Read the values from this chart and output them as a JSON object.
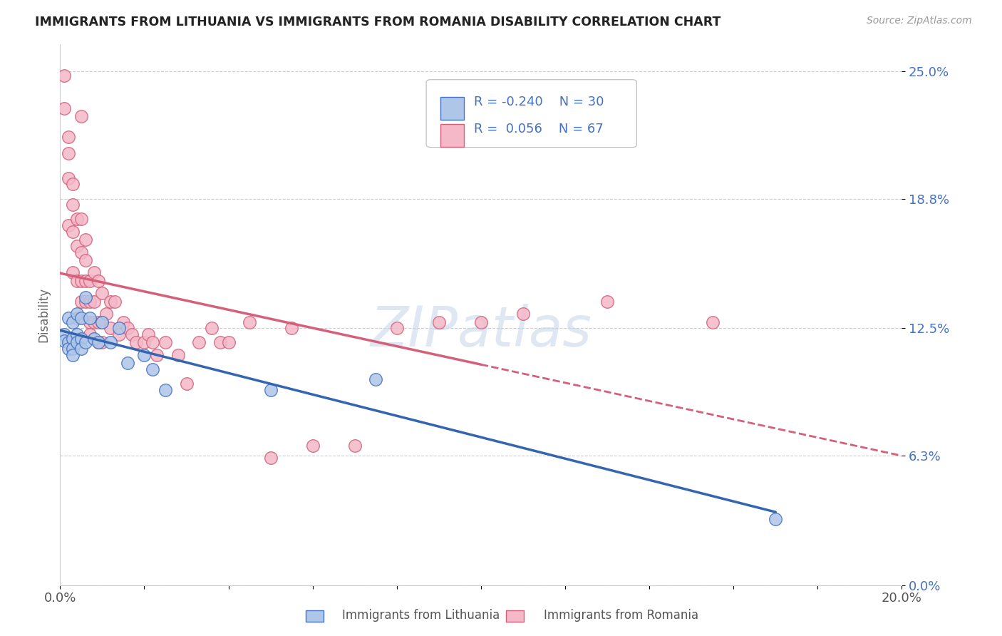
{
  "title": "IMMIGRANTS FROM LITHUANIA VS IMMIGRANTS FROM ROMANIA DISABILITY CORRELATION CHART",
  "source_text": "Source: ZipAtlas.com",
  "ylabel": "Disability",
  "xlim": [
    0.0,
    0.2
  ],
  "ylim": [
    0.0,
    0.263
  ],
  "ytick_labels": [
    "0.0%",
    "6.3%",
    "12.5%",
    "18.8%",
    "25.0%"
  ],
  "ytick_values": [
    0.0,
    0.063,
    0.125,
    0.188,
    0.25
  ],
  "xtick_values": [
    0.0,
    0.02,
    0.04,
    0.06,
    0.08,
    0.1,
    0.12,
    0.14,
    0.16,
    0.18,
    0.2
  ],
  "lithuania_color": "#aec6e8",
  "lithuania_edge_color": "#4472c4",
  "romania_color": "#f4b8c8",
  "romania_edge_color": "#d4607a",
  "lithuania_line_color": "#3465b0",
  "romania_line_color": "#d4607a",
  "R_lithuania": -0.24,
  "N_lithuania": 30,
  "R_romania": 0.056,
  "N_romania": 67,
  "watermark": "ZIPatlas",
  "watermark_color": "#c8d8ea",
  "lithuania_scatter_x": [
    0.001,
    0.001,
    0.002,
    0.002,
    0.002,
    0.003,
    0.003,
    0.003,
    0.003,
    0.004,
    0.004,
    0.004,
    0.005,
    0.005,
    0.005,
    0.006,
    0.006,
    0.007,
    0.008,
    0.009,
    0.01,
    0.012,
    0.014,
    0.016,
    0.02,
    0.022,
    0.025,
    0.05,
    0.075,
    0.17
  ],
  "lithuania_scatter_y": [
    0.122,
    0.119,
    0.13,
    0.118,
    0.115,
    0.128,
    0.12,
    0.115,
    0.112,
    0.132,
    0.122,
    0.118,
    0.13,
    0.12,
    0.115,
    0.14,
    0.118,
    0.13,
    0.12,
    0.118,
    0.128,
    0.118,
    0.125,
    0.108,
    0.112,
    0.105,
    0.095,
    0.095,
    0.1,
    0.032
  ],
  "romania_scatter_x": [
    0.001,
    0.001,
    0.002,
    0.002,
    0.002,
    0.002,
    0.003,
    0.003,
    0.003,
    0.003,
    0.004,
    0.004,
    0.004,
    0.004,
    0.005,
    0.005,
    0.005,
    0.005,
    0.005,
    0.006,
    0.006,
    0.006,
    0.006,
    0.007,
    0.007,
    0.007,
    0.007,
    0.008,
    0.008,
    0.008,
    0.009,
    0.009,
    0.009,
    0.01,
    0.01,
    0.01,
    0.011,
    0.012,
    0.012,
    0.013,
    0.014,
    0.015,
    0.016,
    0.017,
    0.018,
    0.02,
    0.021,
    0.022,
    0.023,
    0.025,
    0.028,
    0.03,
    0.033,
    0.036,
    0.038,
    0.04,
    0.045,
    0.05,
    0.055,
    0.06,
    0.07,
    0.08,
    0.09,
    0.1,
    0.11,
    0.13,
    0.155
  ],
  "romania_scatter_y": [
    0.248,
    0.232,
    0.218,
    0.21,
    0.198,
    0.175,
    0.195,
    0.185,
    0.172,
    0.152,
    0.178,
    0.165,
    0.148,
    0.13,
    0.178,
    0.162,
    0.148,
    0.138,
    0.228,
    0.158,
    0.148,
    0.168,
    0.138,
    0.148,
    0.138,
    0.128,
    0.122,
    0.152,
    0.138,
    0.128,
    0.148,
    0.128,
    0.118,
    0.142,
    0.128,
    0.118,
    0.132,
    0.138,
    0.125,
    0.138,
    0.122,
    0.128,
    0.125,
    0.122,
    0.118,
    0.118,
    0.122,
    0.118,
    0.112,
    0.118,
    0.112,
    0.098,
    0.118,
    0.125,
    0.118,
    0.118,
    0.128,
    0.062,
    0.125,
    0.068,
    0.068,
    0.125,
    0.128,
    0.128,
    0.132,
    0.138,
    0.128
  ]
}
